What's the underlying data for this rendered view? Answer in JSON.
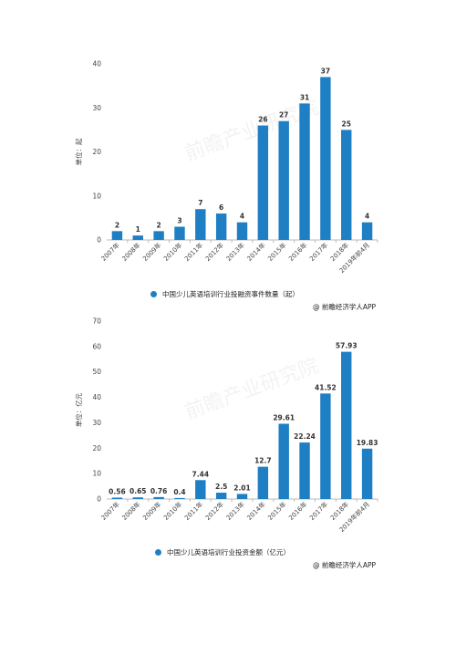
{
  "credit": "@ 前瞻经济学人APP",
  "watermark": "前瞻产业研究院",
  "colors": {
    "bar": "#1f7fc4",
    "axis": "#999999",
    "grid": "#e6e6e6"
  },
  "chart_data": [
    {
      "type": "bar",
      "title": "",
      "ylabel": "单位：起",
      "legend": "中国少儿英语培训行业投融资事件数量（起）",
      "ylim": [
        0,
        40
      ],
      "yticks": [
        0,
        10,
        20,
        30,
        40
      ],
      "grid": false,
      "categories": [
        "2007年",
        "2008年",
        "2009年",
        "2010年",
        "2011年",
        "2012年",
        "2013年",
        "2014年",
        "2015年",
        "2016年",
        "2017年",
        "2018年",
        "2019年前4月"
      ],
      "values": [
        2,
        1,
        2,
        3,
        7,
        6,
        4,
        26,
        27,
        31,
        37,
        25,
        4
      ],
      "value_labels": [
        "2",
        "1",
        "2",
        "3",
        "7",
        "6",
        "4",
        "26",
        "27",
        "31",
        "37",
        "25",
        "4"
      ]
    },
    {
      "type": "bar",
      "title": "",
      "ylabel": "单位：亿元",
      "legend": "中国少儿英语培训行业投资金额（亿元）",
      "ylim": [
        0,
        70
      ],
      "yticks": [
        0,
        10,
        20,
        30,
        40,
        50,
        60,
        70
      ],
      "grid": false,
      "categories": [
        "2007年",
        "2008年",
        "2009年",
        "2010年",
        "2011年",
        "2012年",
        "2013年",
        "2014年",
        "2015年",
        "2016年",
        "2017年",
        "2018年",
        "2019年前4月"
      ],
      "values": [
        0.56,
        0.65,
        0.76,
        0.4,
        7.44,
        2.5,
        2.01,
        12.7,
        29.61,
        22.24,
        41.52,
        57.93,
        19.83
      ],
      "value_labels": [
        "0.56",
        "0.65",
        "0.76",
        "0.4",
        "7.44",
        "2.5",
        "2.01",
        "12.7",
        "29.61",
        "22.24",
        "41.52",
        "57.93",
        "19.83"
      ]
    }
  ]
}
